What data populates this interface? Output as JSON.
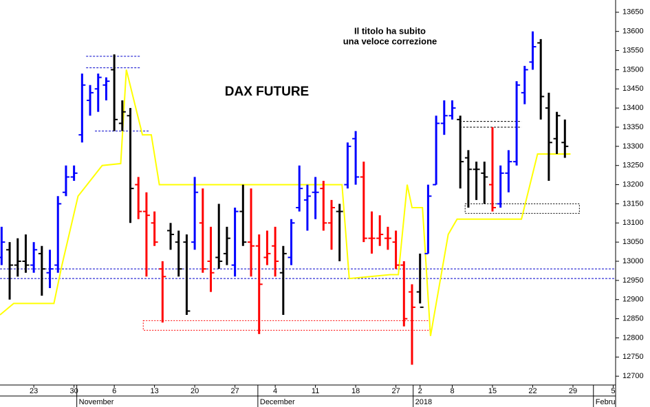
{
  "chart_data": {
    "type": "ohlc",
    "title": "DAX FUTURE",
    "annotation": [
      "Il titolo ha subito",
      "una veloce correzione"
    ],
    "x": [
      0,
      1,
      2,
      3,
      4,
      5,
      6,
      7,
      8,
      9,
      10,
      11,
      12,
      13,
      14,
      15,
      16,
      17,
      18,
      19,
      20,
      21,
      22,
      23,
      24,
      25,
      26,
      27,
      28,
      29,
      30,
      31,
      32,
      33,
      34,
      35,
      36,
      37,
      38,
      39,
      40,
      41,
      42,
      43,
      44,
      45,
      46,
      47,
      48,
      49,
      50,
      51,
      52,
      53,
      54,
      55,
      56,
      57,
      58,
      59,
      60,
      61,
      62,
      63,
      64,
      65,
      66,
      67,
      68,
      69,
      70
    ],
    "open": [
      13010,
      13030,
      12990,
      13000,
      12990,
      13020,
      12970,
      12990,
      13180,
      13220,
      13330,
      13420,
      13450,
      13460,
      13500,
      13360,
      13380,
      13200,
      13130,
      13100,
      12980,
      13080,
      13050,
      13050,
      13050,
      13100,
      13000,
      13010,
      13020,
      12990,
      13130,
      13050,
      13040,
      13010,
      13040,
      12970,
      13010,
      13140,
      13160,
      13180,
      13190,
      13100,
      13130,
      13200,
      13320,
      13220,
      13060,
      13060,
      13060,
      13050,
      12990,
      12920,
      12920,
      13020,
      13200,
      13360,
      13380,
      13370,
      13270,
      13240,
      13230,
      13200,
      13150,
      13230,
      13260,
      13440,
      13520,
      13570,
      13400,
      13320,
      13310
    ],
    "high": [
      13090,
      13050,
      13060,
      13070,
      13050,
      13040,
      13030,
      13170,
      13250,
      13250,
      13490,
      13460,
      13490,
      13480,
      13540,
      13420,
      13400,
      13220,
      13180,
      13130,
      13000,
      13100,
      13080,
      13070,
      13220,
      13190,
      13090,
      13150,
      13090,
      13140,
      13200,
      13190,
      13070,
      13080,
      13090,
      13040,
      13110,
      13250,
      13200,
      13220,
      13210,
      13160,
      13150,
      13310,
      13340,
      13260,
      13130,
      13120,
      13090,
      13080,
      13000,
      12940,
      13020,
      13200,
      13380,
      13420,
      13420,
      13380,
      13290,
      13260,
      13260,
      13350,
      13250,
      13290,
      13470,
      13510,
      13600,
      13580,
      13440,
      13390,
      13370
    ],
    "low": [
      12990,
      12900,
      12960,
      12970,
      12970,
      12910,
      12930,
      12970,
      13170,
      13210,
      13310,
      13380,
      13390,
      13420,
      13340,
      13340,
      13100,
      13110,
      12960,
      13040,
      12840,
      13030,
      12960,
      12860,
      13030,
      12970,
      12920,
      12980,
      12990,
      12960,
      13040,
      12960,
      12810,
      12990,
      12960,
      12860,
      12990,
      13130,
      13080,
      13110,
      13080,
      13030,
      13000,
      13190,
      13200,
      13050,
      13020,
      13040,
      13030,
      12980,
      12830,
      12730,
      12890,
      13020,
      13200,
      13330,
      13370,
      13190,
      13140,
      13160,
      13150,
      13130,
      13140,
      13180,
      13250,
      13410,
      13500,
      13370,
      13210,
      13280,
      13270
    ],
    "close": [
      13050,
      12990,
      13000,
      12990,
      13030,
      12980,
      12980,
      13150,
      13220,
      13230,
      13460,
      13440,
      13480,
      13470,
      13370,
      13390,
      13190,
      13130,
      13120,
      13050,
      12960,
      13070,
      12980,
      12870,
      13180,
      12980,
      12970,
      13000,
      13060,
      13130,
      13050,
      13040,
      12940,
      13020,
      13000,
      13020,
      13100,
      13190,
      13170,
      13180,
      13100,
      13140,
      13130,
      13300,
      13220,
      13060,
      13060,
      13070,
      13060,
      12990,
      12850,
      12880,
      12880,
      13170,
      13360,
      13380,
      13400,
      13260,
      13240,
      13240,
      13220,
      13140,
      13230,
      13260,
      13460,
      13500,
      13560,
      13430,
      13310,
      13380,
      13300
    ],
    "colors": [
      "#0000ff",
      "#000000",
      "#000000",
      "#000000",
      "#0000ff",
      "#000000",
      "#0000ff",
      "#0000ff",
      "#0000ff",
      "#0000ff",
      "#0000ff",
      "#0000ff",
      "#0000ff",
      "#0000ff",
      "#000000",
      "#000000",
      "#000000",
      "#ff0000",
      "#ff0000",
      "#ff0000",
      "#ff0000",
      "#000000",
      "#000000",
      "#000000",
      "#0000ff",
      "#ff0000",
      "#ff0000",
      "#000000",
      "#000000",
      "#0000ff",
      "#000000",
      "#ff0000",
      "#ff0000",
      "#ff0000",
      "#ff0000",
      "#000000",
      "#0000ff",
      "#0000ff",
      "#0000ff",
      "#0000ff",
      "#ff0000",
      "#ff0000",
      "#000000",
      "#0000ff",
      "#0000ff",
      "#ff0000",
      "#ff0000",
      "#ff0000",
      "#ff0000",
      "#ff0000",
      "#ff0000",
      "#ff0000",
      "#000000",
      "#0000ff",
      "#0000ff",
      "#0000ff",
      "#0000ff",
      "#000000",
      "#000000",
      "#000000",
      "#000000",
      "#ff0000",
      "#0000ff",
      "#0000ff",
      "#0000ff",
      "#0000ff",
      "#0000ff",
      "#000000",
      "#000000",
      "#000000",
      "#000000"
    ],
    "line": {
      "color": "#ffff00",
      "x": [
        -0.2,
        1.5,
        6.5,
        7.5,
        9.5,
        12.5,
        14.8,
        15.5,
        17.5,
        18.6,
        19.6,
        42.3,
        43.2,
        48.3,
        49.3,
        50.4,
        51,
        52.3,
        53.3,
        55.5,
        56.6,
        64.6,
        66.6,
        70.7
      ],
      "values": [
        12860,
        12890,
        12890,
        12990,
        13170,
        13250,
        13255,
        13500,
        13330,
        13330,
        13200,
        13200,
        12955,
        12965,
        12965,
        13200,
        13140,
        13140,
        12805,
        13070,
        13110,
        13110,
        13280,
        13280
      ]
    },
    "levels": [
      {
        "value": 13535,
        "x0": 10.5,
        "x1": 17.3,
        "color": "#0000cc"
      },
      {
        "value": 13505,
        "x0": 10.5,
        "x1": 17.3,
        "color": "#0000cc"
      },
      {
        "value": 13340,
        "x0": 11.6,
        "x1": 18.4,
        "color": "#0000cc"
      },
      {
        "value": 13365,
        "x0": 56.9,
        "x1": 64.6,
        "color": "#000000"
      },
      {
        "value": 13350,
        "x0": 56.9,
        "x1": 64.6,
        "color": "#000000"
      },
      {
        "value": 12980,
        "x0": -0.2,
        "x1": 76.3,
        "color": "#0000cc"
      },
      {
        "value": 12955,
        "x0": -0.2,
        "x1": 76.3,
        "color": "#0000cc"
      }
    ],
    "boxes": [
      {
        "low": 13125,
        "high": 13150,
        "x0": 57.6,
        "x1": 71.8,
        "color": "#000000"
      },
      {
        "low": 12820,
        "high": 12845,
        "x0": 17.6,
        "x1": 53.2,
        "color": "#ff0000"
      }
    ],
    "xlim": [
      -0.2,
      76.3
    ],
    "xticks": [
      {
        "value": 4,
        "label": "23"
      },
      {
        "value": 9,
        "label": "30"
      },
      {
        "value": 14,
        "label": "6"
      },
      {
        "value": 19,
        "label": "13"
      },
      {
        "value": 24,
        "label": "20"
      },
      {
        "value": 29,
        "label": "27"
      },
      {
        "value": 34,
        "label": "4"
      },
      {
        "value": 39,
        "label": "11"
      },
      {
        "value": 44,
        "label": "18"
      },
      {
        "value": 49,
        "label": "27"
      },
      {
        "value": 52,
        "label": "2"
      },
      {
        "value": 56,
        "label": "8"
      },
      {
        "value": 61,
        "label": "15"
      },
      {
        "value": 66,
        "label": "22"
      },
      {
        "value": 71,
        "label": "29"
      },
      {
        "value": 76,
        "label": "5"
      }
    ],
    "month_ticks": [
      {
        "value": 9.6,
        "label": "November"
      },
      {
        "value": 32.1,
        "label": "December"
      },
      {
        "value": 51.4,
        "label": "2018"
      },
      {
        "value": 73.8,
        "label": "Febru"
      }
    ],
    "ylim": [
      12677,
      13682
    ],
    "yticks": [
      12700,
      12750,
      12800,
      12850,
      12900,
      12950,
      13000,
      13050,
      13100,
      13150,
      13200,
      13250,
      13300,
      13350,
      13400,
      13450,
      13500,
      13550,
      13600,
      13650
    ]
  }
}
